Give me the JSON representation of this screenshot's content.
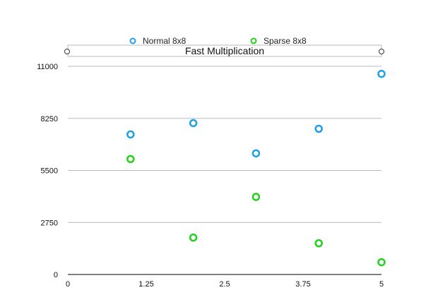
{
  "chart_data": {
    "type": "scatter",
    "title": "Fast Multiplication",
    "xlabel": "",
    "ylabel": "",
    "xlim": [
      0,
      5
    ],
    "ylim": [
      0,
      11000
    ],
    "xticks": [
      "0",
      "1.25",
      "2.5",
      "3.75",
      "5"
    ],
    "yticks": [
      "0",
      "2750",
      "5500",
      "8250",
      "11000"
    ],
    "grid": "horizontal",
    "legend_position": "top",
    "series": [
      {
        "name": "Normal 8x8",
        "color": "#1E9FE8",
        "points": [
          {
            "x": 1,
            "y": 7400
          },
          {
            "x": 2,
            "y": 8000
          },
          {
            "x": 3,
            "y": 6400
          },
          {
            "x": 4,
            "y": 7700
          },
          {
            "x": 5,
            "y": 10600
          }
        ]
      },
      {
        "name": "Sparse 8x8",
        "color": "#22D01E",
        "points": [
          {
            "x": 1,
            "y": 6100
          },
          {
            "x": 2,
            "y": 1950
          },
          {
            "x": 3,
            "y": 4100
          },
          {
            "x": 4,
            "y": 1650
          },
          {
            "x": 5,
            "y": 650
          }
        ]
      }
    ]
  }
}
